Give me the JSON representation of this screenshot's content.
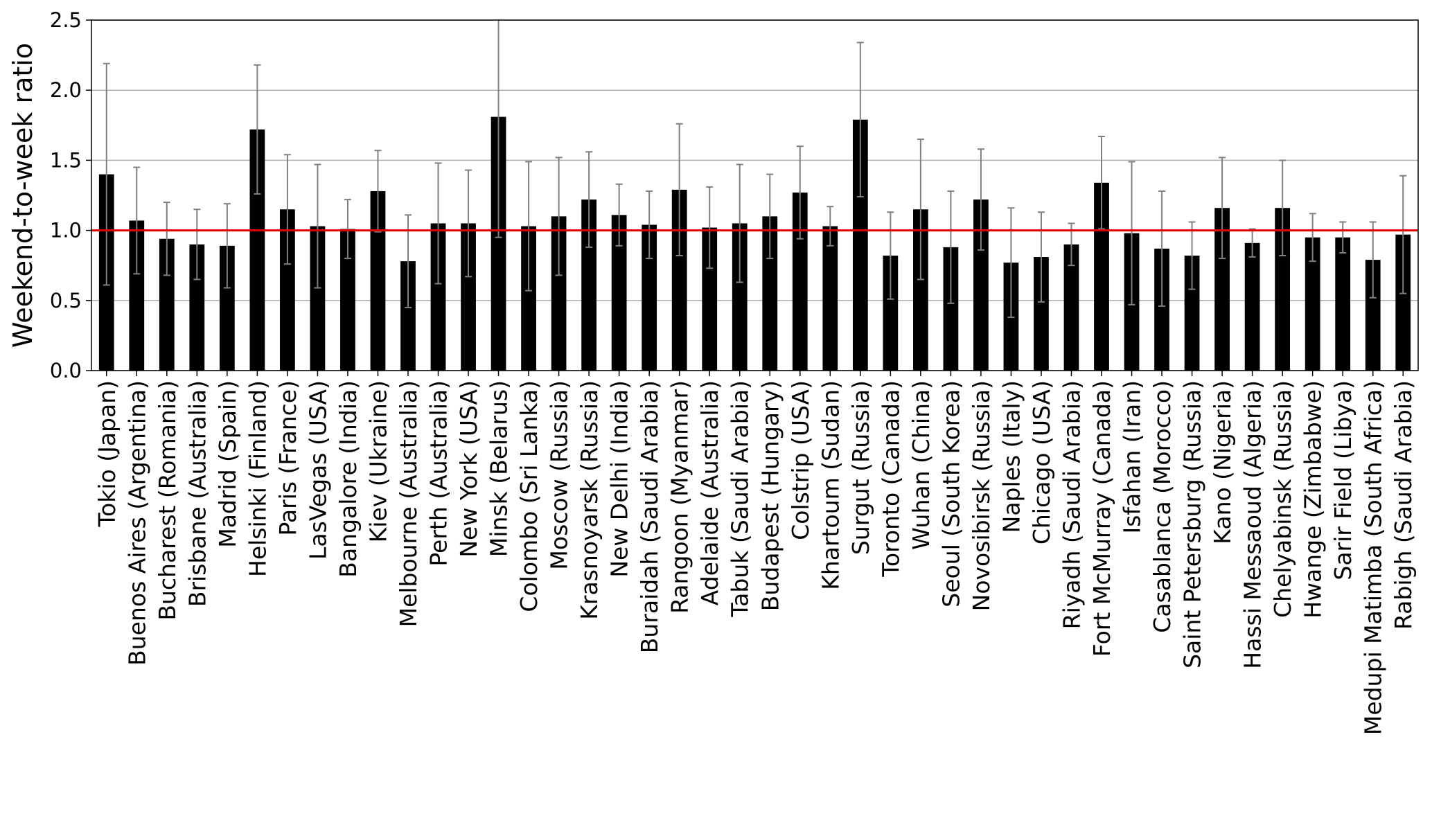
{
  "chart_data": {
    "type": "bar",
    "ylabel": "Weekend-to-week ratio",
    "categories": [
      "Tokio (Japan)",
      "Buenos Aires (Argentina)",
      "Bucharest (Romania)",
      "Brisbane (Australia)",
      "Madrid (Spain)",
      "Helsinki (Finland)",
      "Paris (France)",
      "LasVegas (USA)",
      "Bangalore (India)",
      "Kiev (Ukraine)",
      "Melbourne (Australia)",
      "Perth (Australia)",
      "New York (USA)",
      "Minsk (Belarus)",
      "Colombo (Sri Lanka)",
      "Moscow (Russia)",
      "Krasnoyarsk (Russia)",
      "New Delhi (India)",
      "Buraidah (Saudi Arabia)",
      "Rangoon (Myanmar)",
      "Adelaide (Australia)",
      "Tabuk (Saudi Arabia)",
      "Budapest (Hungary)",
      "Colstrip (USA)",
      "Khartoum (Sudan)",
      "Surgut (Russia)",
      "Toronto (Canada)",
      "Wuhan (China)",
      "Seoul (South Korea)",
      "Novosibirsk (Russia)",
      "Naples (Italy)",
      "Chicago (USA)",
      "Riyadh (Saudi Arabia)",
      "Fort McMurray (Canada)",
      "Isfahan (Iran)",
      "Casablanca (Morocco)",
      "Saint Petersburg (Russia)",
      "Kano (Nigeria)",
      "Hassi Messaoud (Algeria)",
      "Chelyabinsk (Russia)",
      "Hwange (Zimbabwe)",
      "Sarir Field (Libya)",
      "Medupi Matimba (South Africa)",
      "Rabigh (Saudi Arabia)"
    ],
    "values": [
      1.4,
      1.07,
      0.94,
      0.9,
      0.89,
      1.72,
      1.15,
      1.03,
      1.01,
      1.28,
      0.78,
      1.05,
      1.05,
      1.81,
      1.03,
      1.1,
      1.22,
      1.11,
      1.04,
      1.29,
      1.02,
      1.05,
      1.1,
      1.27,
      1.03,
      1.79,
      0.82,
      1.15,
      0.88,
      1.22,
      0.77,
      0.81,
      0.9,
      1.34,
      0.98,
      0.87,
      0.82,
      1.16,
      0.91,
      1.16,
      0.95,
      0.95,
      0.79,
      0.97
    ],
    "errors": [
      0.79,
      0.38,
      0.26,
      0.25,
      0.3,
      0.46,
      0.39,
      0.44,
      0.21,
      0.29,
      0.33,
      0.43,
      0.38,
      0.86,
      0.46,
      0.42,
      0.34,
      0.22,
      0.24,
      0.47,
      0.29,
      0.42,
      0.3,
      0.33,
      0.14,
      0.55,
      0.31,
      0.5,
      0.4,
      0.36,
      0.39,
      0.32,
      0.15,
      0.33,
      0.51,
      0.41,
      0.24,
      0.36,
      0.1,
      0.34,
      0.17,
      0.11,
      0.27,
      0.42
    ],
    "color": "#000000",
    "error_color": "#808080",
    "hline": 1.0,
    "hline_color": "#dd0000",
    "ylim": [
      0,
      2.5
    ],
    "yticks": [
      {
        "value": 0,
        "label": "0.0"
      },
      0.5,
      {
        "value": 1,
        "label": "1.0"
      },
      1.5,
      {
        "value": 2,
        "label": "2.0"
      },
      2.5
    ],
    "grid": true
  }
}
